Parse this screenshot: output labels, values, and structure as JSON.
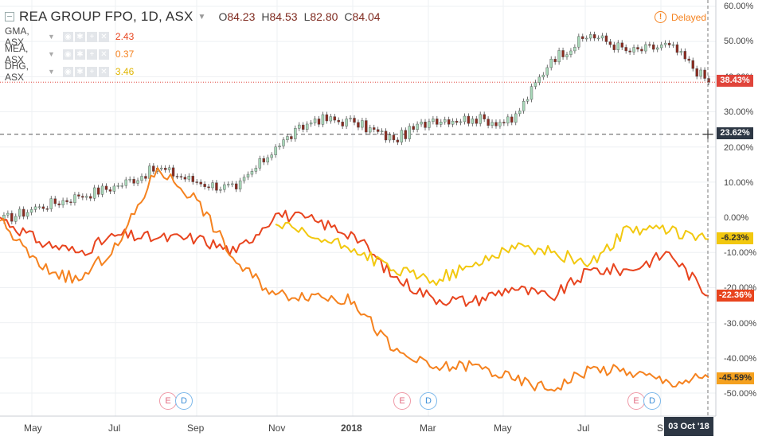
{
  "header": {
    "title": "REA GROUP FPO, 1D, ASX",
    "ohlc": [
      {
        "key": "O",
        "value": "84.23"
      },
      {
        "key": "H",
        "value": "84.53"
      },
      {
        "key": "L",
        "value": "82.80"
      },
      {
        "key": "C",
        "value": "84.04"
      }
    ],
    "delayed_label": "Delayed"
  },
  "legend": [
    {
      "symbol": "GMA, ASX",
      "value": "2.43",
      "color": "#e8441e"
    },
    {
      "symbol": "MEA, ASX",
      "value": "0.37",
      "color": "#f5821f"
    },
    {
      "symbol": "DHG, ASX",
      "value": "3.46",
      "color": "#f2c80f"
    }
  ],
  "axis": {
    "y_ticks": [
      "60.00%",
      "50.00%",
      "40.00%",
      "30.00%",
      "20.00%",
      "10.00%",
      "0.00%",
      "-10.00%",
      "-20.00%",
      "-30.00%",
      "-40.00%",
      "-50.00%"
    ],
    "x_ticks": [
      "May",
      "Jul",
      "Sep",
      "Nov",
      "2018",
      "Mar",
      "May",
      "Jul",
      "S"
    ],
    "crosshair_date": "03 Oct '18"
  },
  "badges": [
    {
      "label": "38.43%",
      "bg": "#e0443a",
      "fg": "#ffffff"
    },
    {
      "label": "23.62%",
      "bg": "#2d3744",
      "fg": "#ffffff"
    },
    {
      "label": "-6.23%",
      "bg": "#f2c80f",
      "fg": "#2d2d2d"
    },
    {
      "label": "-22.36%",
      "bg": "#e8441e",
      "fg": "#ffffff"
    },
    {
      "label": "-45.59%",
      "bg": "#f5a11f",
      "fg": "#2d2d2d"
    }
  ],
  "events": [
    {
      "type": "E",
      "label": "E"
    },
    {
      "type": "D",
      "label": "D"
    },
    {
      "type": "E",
      "label": "E"
    },
    {
      "type": "D",
      "label": "D"
    },
    {
      "type": "E",
      "label": "E"
    },
    {
      "type": "D",
      "label": "D"
    }
  ],
  "chart_data": {
    "type": "line",
    "title": "REA GROUP FPO, 1D, ASX",
    "ylabel": "",
    "y_unit": "%",
    "ylim": [
      -55,
      62
    ],
    "x": [
      "2017-04-12",
      "2017-05",
      "2017-06",
      "2017-07",
      "2017-08",
      "2017-09",
      "2017-10",
      "2017-11",
      "2017-12",
      "2018-01",
      "2018-02",
      "2018-03",
      "2018-04",
      "2018-05",
      "2018-06",
      "2018-07",
      "2018-08",
      "2018-09",
      "2018-10-03"
    ],
    "grid": true,
    "series": [
      {
        "name": "REA GROUP FPO",
        "style": "candlestick",
        "color_up": "#a8d8b9",
        "color_down": "#8b2a1f",
        "values": [
          -1,
          3,
          6,
          9,
          14,
          10,
          8,
          20,
          28,
          27,
          22,
          28,
          28,
          27,
          45,
          52,
          47,
          49,
          38.43
        ]
      },
      {
        "name": "GMA, ASX",
        "color": "#e8441e",
        "values": [
          0,
          -7,
          -10,
          -5,
          -6,
          -6,
          -10,
          1,
          -1,
          -5,
          -17,
          -23,
          -24,
          -20,
          -23,
          -15,
          -15,
          -10,
          -22.36
        ]
      },
      {
        "name": "MEA, ASX",
        "color": "#f5821f",
        "values": [
          -1,
          -14,
          -18,
          -8,
          14,
          5,
          -13,
          -22,
          -22,
          -24,
          -38,
          -43,
          -42,
          -46,
          -49,
          -43,
          -44,
          -47,
          -45.59
        ]
      },
      {
        "name": "DHG, ASX",
        "color": "#f2c80f",
        "values": [
          null,
          null,
          null,
          null,
          null,
          null,
          null,
          -2,
          -6,
          -9,
          -15,
          -18,
          -14,
          -8,
          -10,
          -13,
          -3,
          -4,
          -6.23
        ]
      }
    ],
    "reference_lines": [
      {
        "label": "38.43%",
        "value": 38.43,
        "style": "dotted",
        "color": "#e0443a"
      },
      {
        "label": "23.62%",
        "value": 23.62,
        "style": "dashed",
        "color": "#555555"
      }
    ]
  }
}
